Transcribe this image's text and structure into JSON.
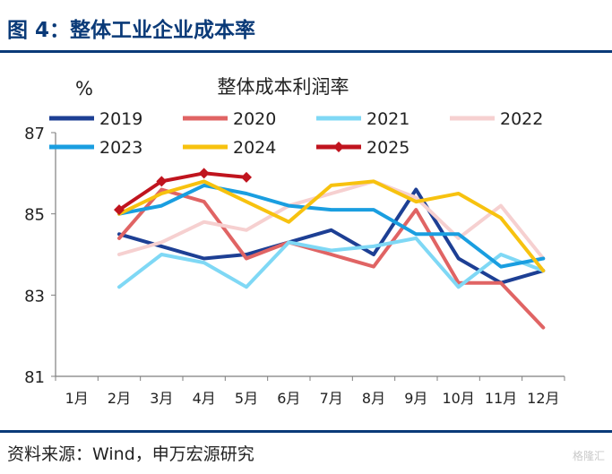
{
  "header": {
    "title": "图 4：整体工业企业成本率"
  },
  "footer": {
    "source": "资料来源：Wind，申万宏源研究",
    "watermark": "格隆汇"
  },
  "chart_data": {
    "type": "line",
    "title": "整体成本利润率",
    "ylabel": "%",
    "xlabel": "",
    "categories": [
      "1月",
      "2月",
      "3月",
      "4月",
      "5月",
      "6月",
      "7月",
      "8月",
      "9月",
      "10月",
      "11月",
      "12月"
    ],
    "ylim": [
      81,
      87
    ],
    "yticks": [
      "81",
      "83",
      "85",
      "87"
    ],
    "grid": false,
    "legend_position": "top",
    "series": [
      {
        "name": "2019",
        "color": "#1d3f94",
        "marker": false,
        "values": [
          null,
          84.5,
          84.2,
          83.9,
          84.0,
          84.3,
          84.6,
          84.0,
          85.6,
          83.9,
          83.3,
          83.6
        ]
      },
      {
        "name": "2020",
        "color": "#e06464",
        "marker": false,
        "values": [
          null,
          84.4,
          85.6,
          85.3,
          83.9,
          84.3,
          84.0,
          83.7,
          85.1,
          83.3,
          83.3,
          82.2
        ]
      },
      {
        "name": "2021",
        "color": "#7fd8f5",
        "marker": false,
        "values": [
          null,
          83.2,
          84.0,
          83.8,
          83.2,
          84.3,
          84.1,
          84.2,
          84.4,
          83.2,
          84.0,
          83.6
        ]
      },
      {
        "name": "2022",
        "color": "#f6d0d0",
        "marker": false,
        "values": [
          null,
          84.0,
          84.3,
          84.8,
          84.6,
          85.2,
          85.5,
          85.8,
          85.4,
          84.4,
          85.2,
          83.9
        ]
      },
      {
        "name": "2023",
        "color": "#1a9ee0",
        "marker": false,
        "values": [
          null,
          85.0,
          85.2,
          85.7,
          85.5,
          85.2,
          85.1,
          85.1,
          84.5,
          84.5,
          83.7,
          83.9
        ]
      },
      {
        "name": "2024",
        "color": "#f7c20f",
        "marker": false,
        "values": [
          null,
          85.0,
          85.5,
          85.8,
          85.3,
          84.8,
          85.7,
          85.8,
          85.3,
          85.5,
          84.9,
          83.6
        ]
      },
      {
        "name": "2025",
        "color": "#c0141e",
        "marker": true,
        "values": [
          null,
          85.1,
          85.8,
          86.0,
          85.9,
          null,
          null,
          null,
          null,
          null,
          null,
          null
        ]
      }
    ]
  }
}
